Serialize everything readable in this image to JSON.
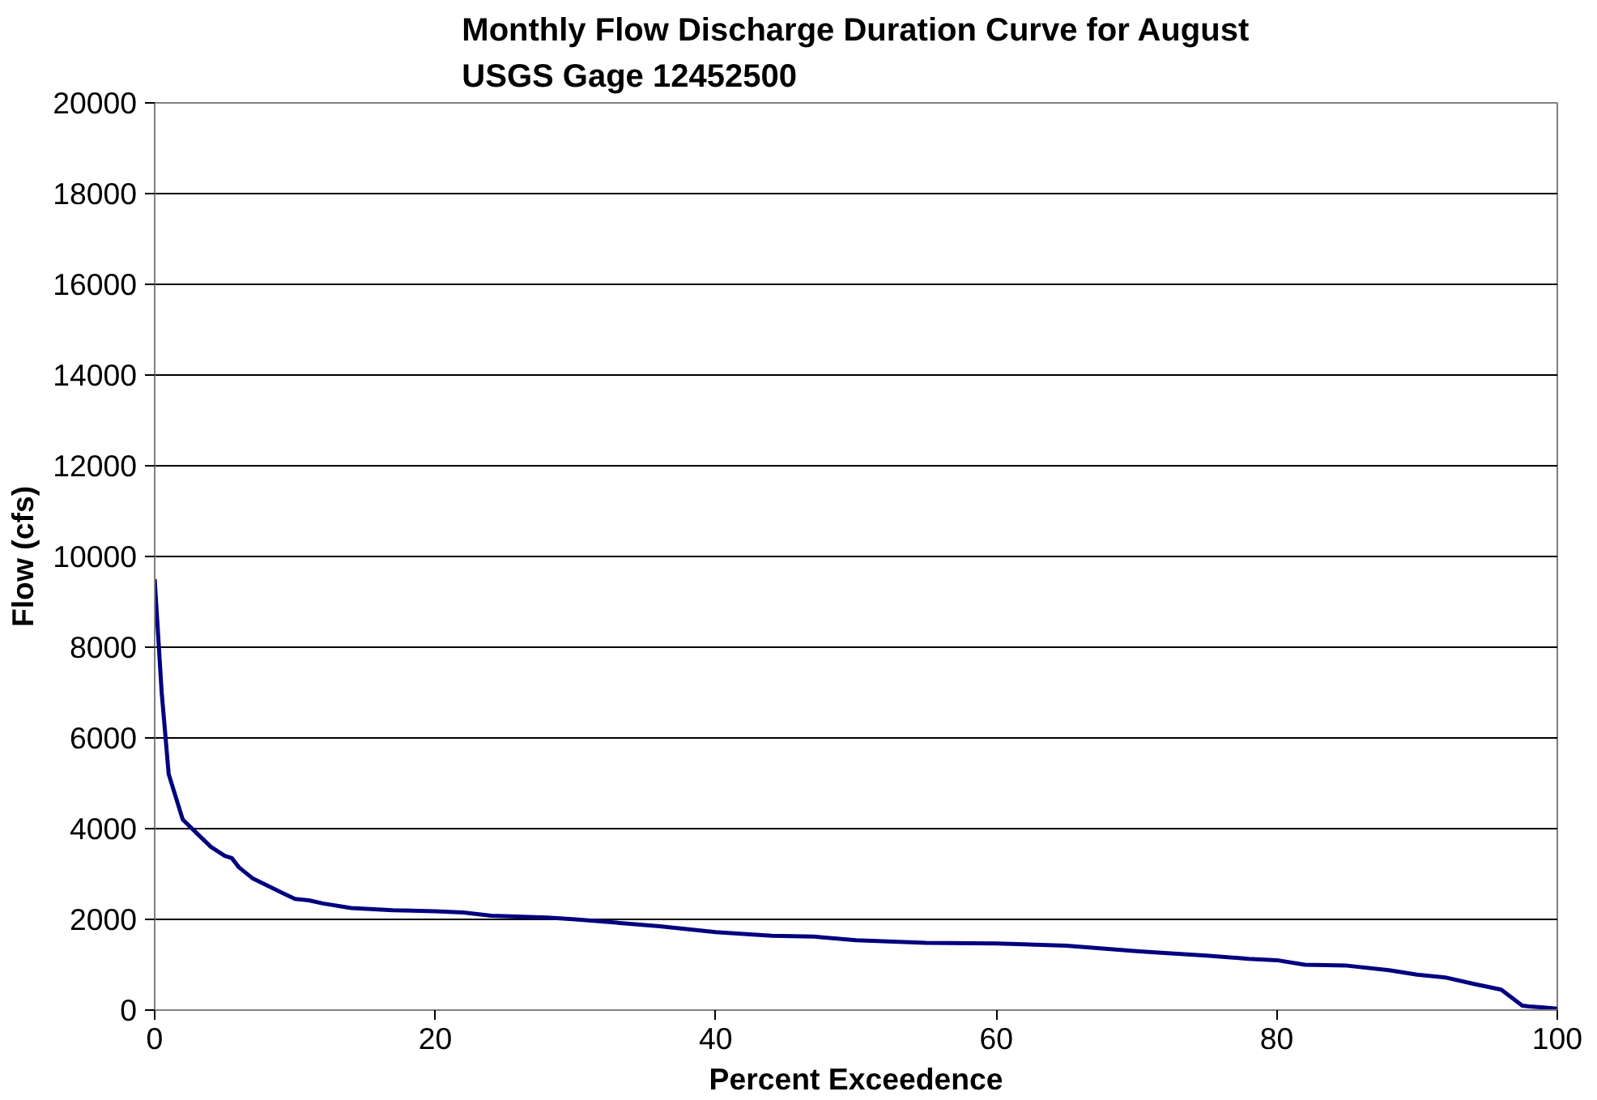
{
  "chart_data": {
    "type": "line",
    "title": "Monthly Flow Discharge Duration Curve for August\nUSGS Gage 12452500",
    "xlabel": "Percent Exceedence",
    "ylabel": "Flow (cfs)",
    "series": [
      {
        "color": "#000080",
        "x": [
          0,
          0.5,
          1,
          2,
          3,
          4,
          5,
          5.5,
          6,
          7,
          8,
          9,
          10,
          11,
          12,
          14,
          17,
          20,
          22,
          24,
          28,
          30,
          32,
          36,
          40,
          44,
          47,
          50,
          55,
          60,
          65,
          70,
          72,
          75,
          78,
          80,
          82,
          85,
          88,
          90,
          92,
          94,
          96,
          97.5,
          98,
          99,
          100
        ],
        "values": [
          9500,
          7000,
          5200,
          4200,
          3900,
          3600,
          3400,
          3350,
          3150,
          2900,
          2750,
          2600,
          2450,
          2420,
          2350,
          2250,
          2200,
          2180,
          2150,
          2080,
          2040,
          2000,
          1950,
          1850,
          1720,
          1640,
          1620,
          1540,
          1480,
          1470,
          1420,
          1300,
          1260,
          1200,
          1130,
          1100,
          1000,
          980,
          880,
          780,
          720,
          580,
          450,
          100,
          80,
          60,
          30
        ]
      }
    ],
    "xlim": [
      0,
      100
    ],
    "xticks": [
      0,
      20,
      40,
      60,
      80,
      100
    ],
    "ylim": [
      0,
      20000
    ],
    "yticks": [
      0,
      2000,
      4000,
      6000,
      8000,
      10000,
      12000,
      14000,
      16000,
      18000,
      20000
    ],
    "grid": true,
    "marker": "none",
    "line_style": "solid"
  }
}
